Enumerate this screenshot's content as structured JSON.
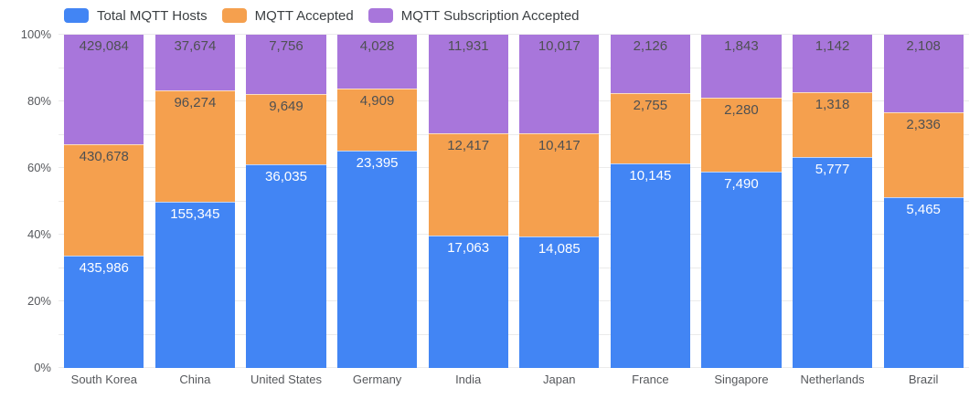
{
  "chart_data": {
    "type": "bar",
    "variant": "stacked-100-percent",
    "title": "",
    "legend_position": "top",
    "grid": true,
    "categories": [
      "South Korea",
      "China",
      "United States",
      "Germany",
      "India",
      "Japan",
      "France",
      "Singapore",
      "Netherlands",
      "Brazil"
    ],
    "series": [
      {
        "name": "Total MQTT Hosts",
        "color": "#4285F4",
        "label_color": "#FFFFFF",
        "values": [
          435986,
          155345,
          36035,
          23395,
          17063,
          14085,
          10145,
          7490,
          5777,
          5465
        ]
      },
      {
        "name": "MQTT Accepted",
        "color": "#F5A04E",
        "label_color": "#4E5052",
        "values": [
          430678,
          96274,
          9649,
          4909,
          12417,
          10417,
          2755,
          2280,
          1318,
          2336
        ]
      },
      {
        "name": "MQTT Subscription Accepted",
        "color": "#A876DB",
        "label_color": "#4E5052",
        "values": [
          429084,
          37674,
          7756,
          4028,
          11931,
          10017,
          2126,
          1843,
          1142,
          2108
        ]
      }
    ],
    "stack_order_top_to_bottom": [
      "MQTT Subscription Accepted",
      "MQTT Accepted",
      "Total MQTT Hosts"
    ],
    "y_axis": {
      "unit": "%",
      "min": 0,
      "max": 100,
      "tick_labels": [
        "0%",
        "20%",
        "40%",
        "60%",
        "80%",
        "100%"
      ],
      "label_step_percent": 20,
      "grid_step_percent": 10
    },
    "colors": {
      "gridline": "#EBEBEB",
      "axis_label": "#56585C",
      "legend_text": "#3C4043",
      "segment_separator": "rgba(255,255,255,0.65)"
    }
  }
}
